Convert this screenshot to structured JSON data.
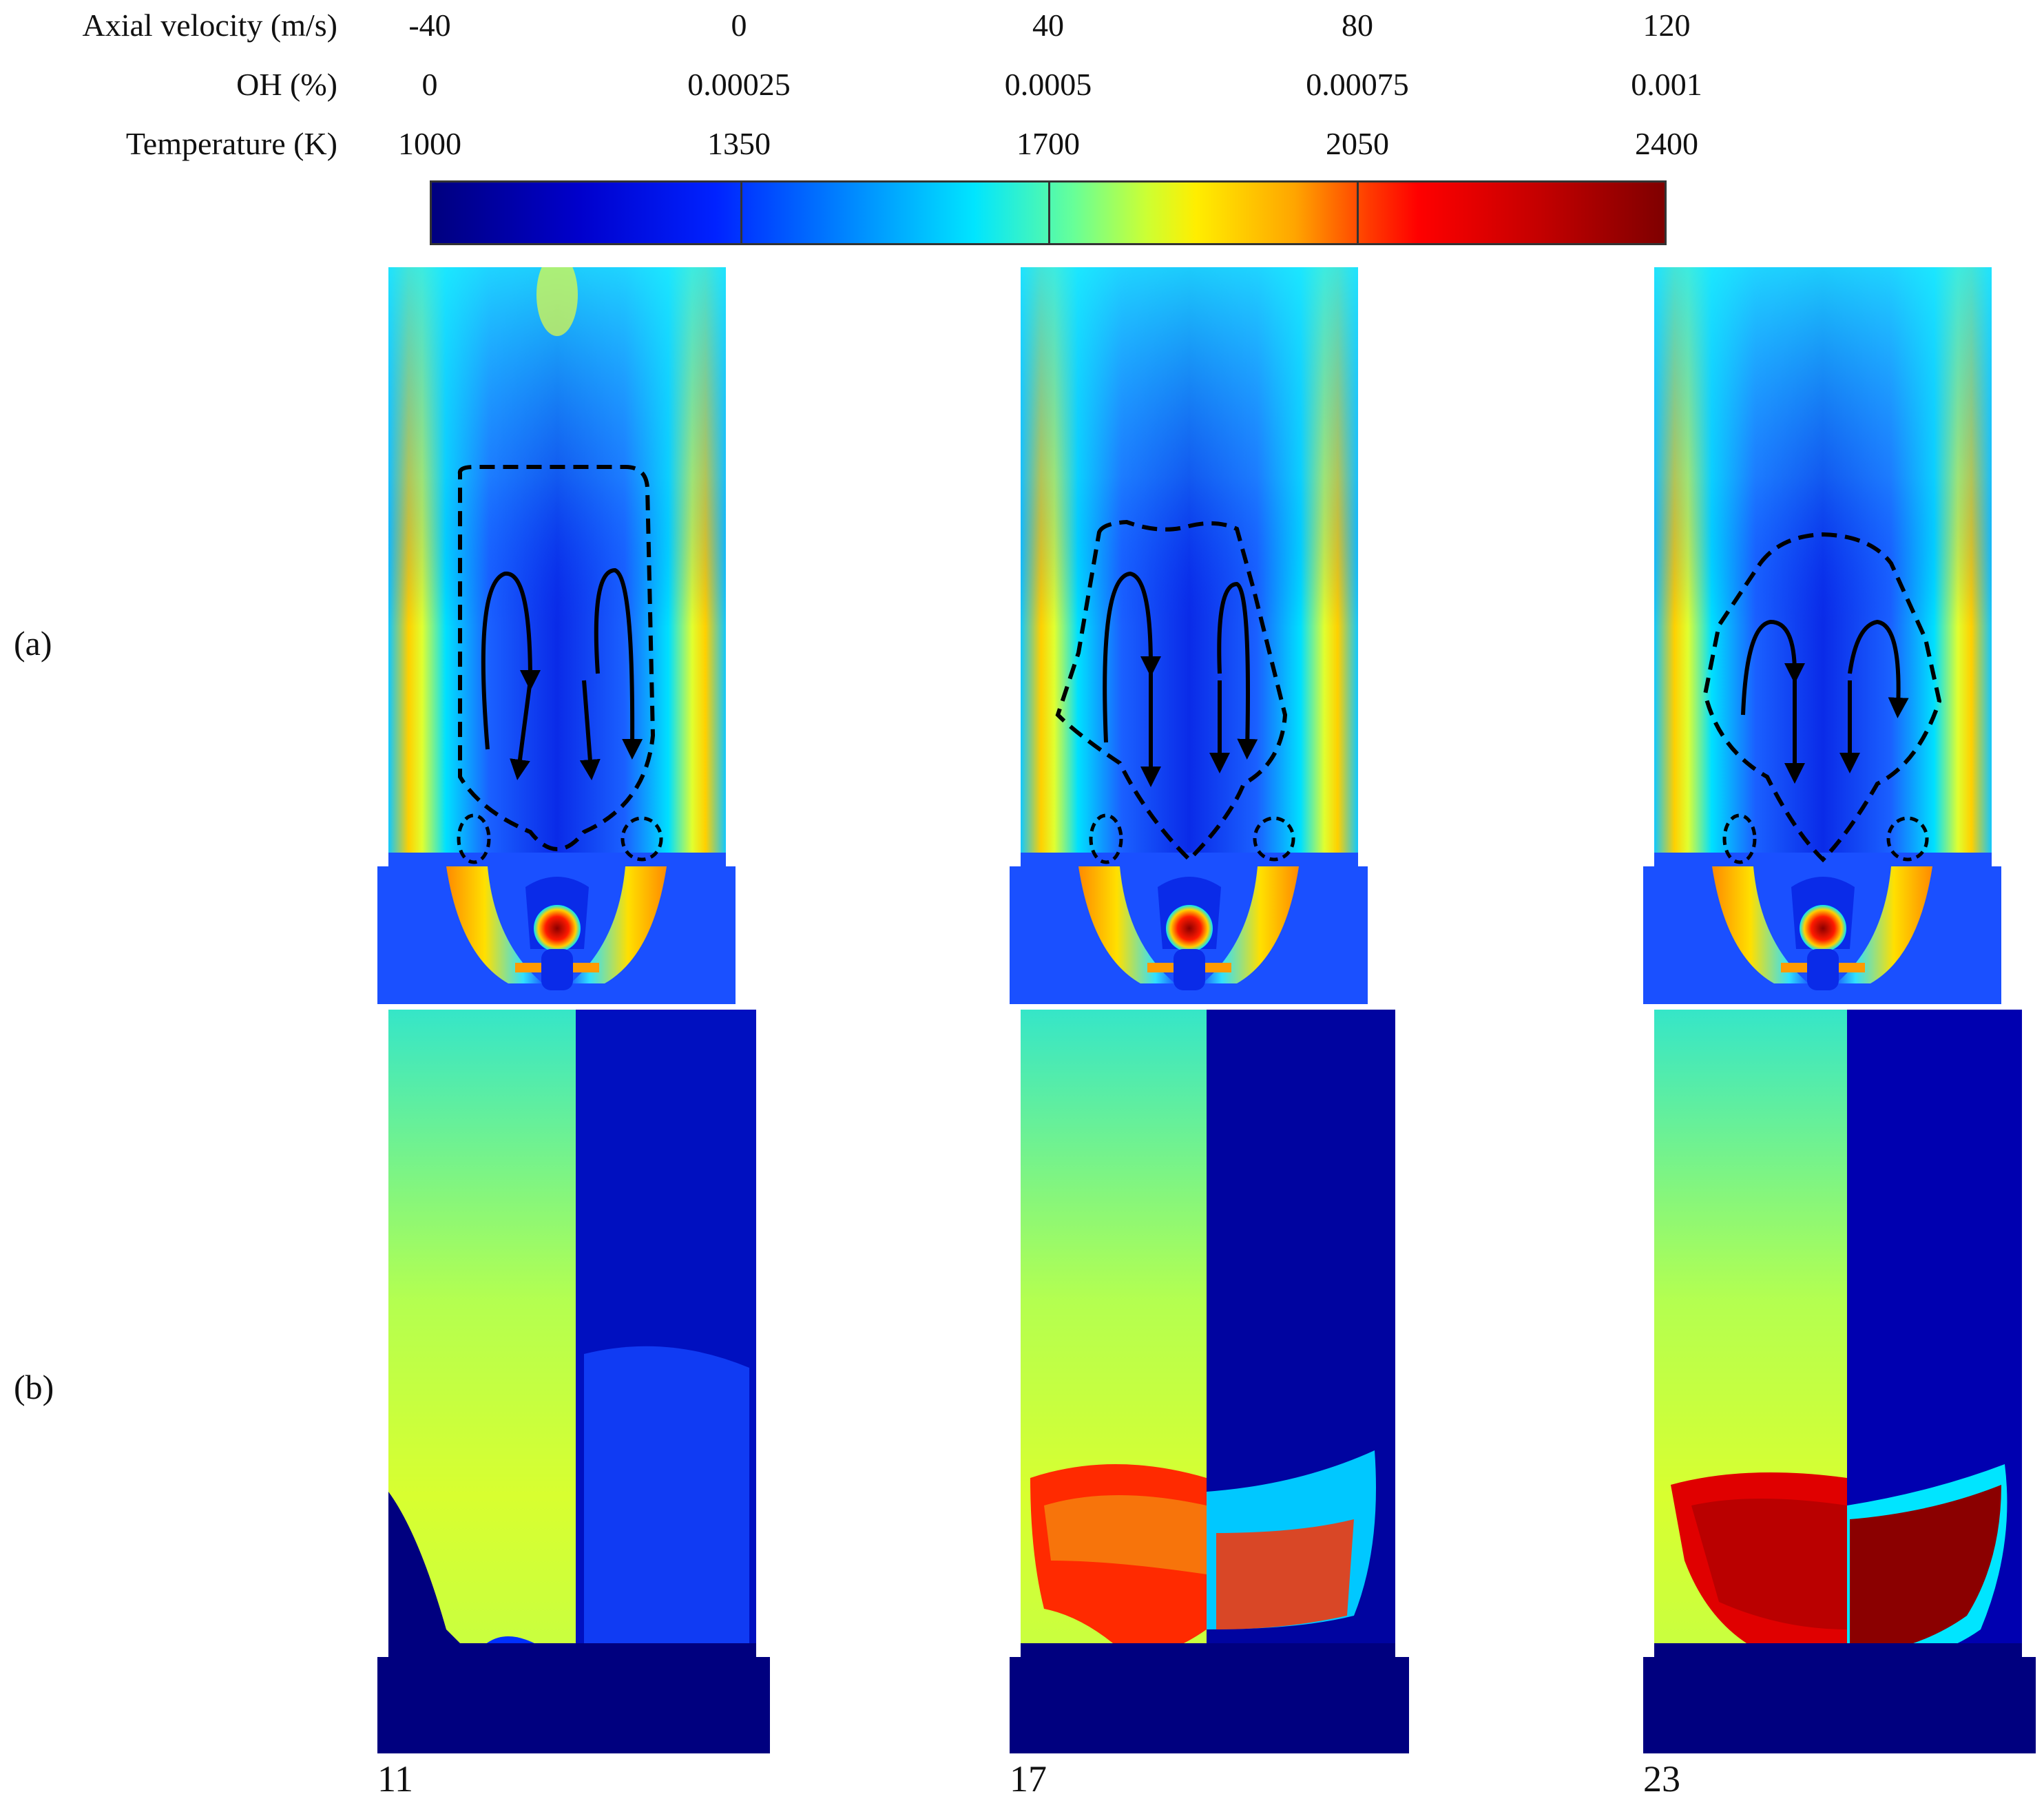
{
  "legend": {
    "rows": [
      {
        "name": "Axial velocity (m/s)",
        "ticks": [
          "-40",
          "0",
          "40",
          "80",
          "120"
        ]
      },
      {
        "name": "OH (%)",
        "ticks": [
          "0",
          "0.00025",
          "0.0005",
          "0.00075",
          "0.001"
        ]
      },
      {
        "name": "Temperature (K)",
        "ticks": [
          "1000",
          "1350",
          "1700",
          "2050",
          "2400"
        ]
      }
    ],
    "colormap": "jet"
  },
  "panel_labels": {
    "a": "(a)",
    "b": "(b)"
  },
  "cases": [
    "11",
    "17",
    "23"
  ],
  "colors": {
    "dark_blue": "#00007f",
    "blue": "#1a3cff",
    "cyan": "#00e5ff",
    "yellow": "#e8ff20",
    "red": "#ff1a00",
    "dark_red": "#8b0000"
  }
}
